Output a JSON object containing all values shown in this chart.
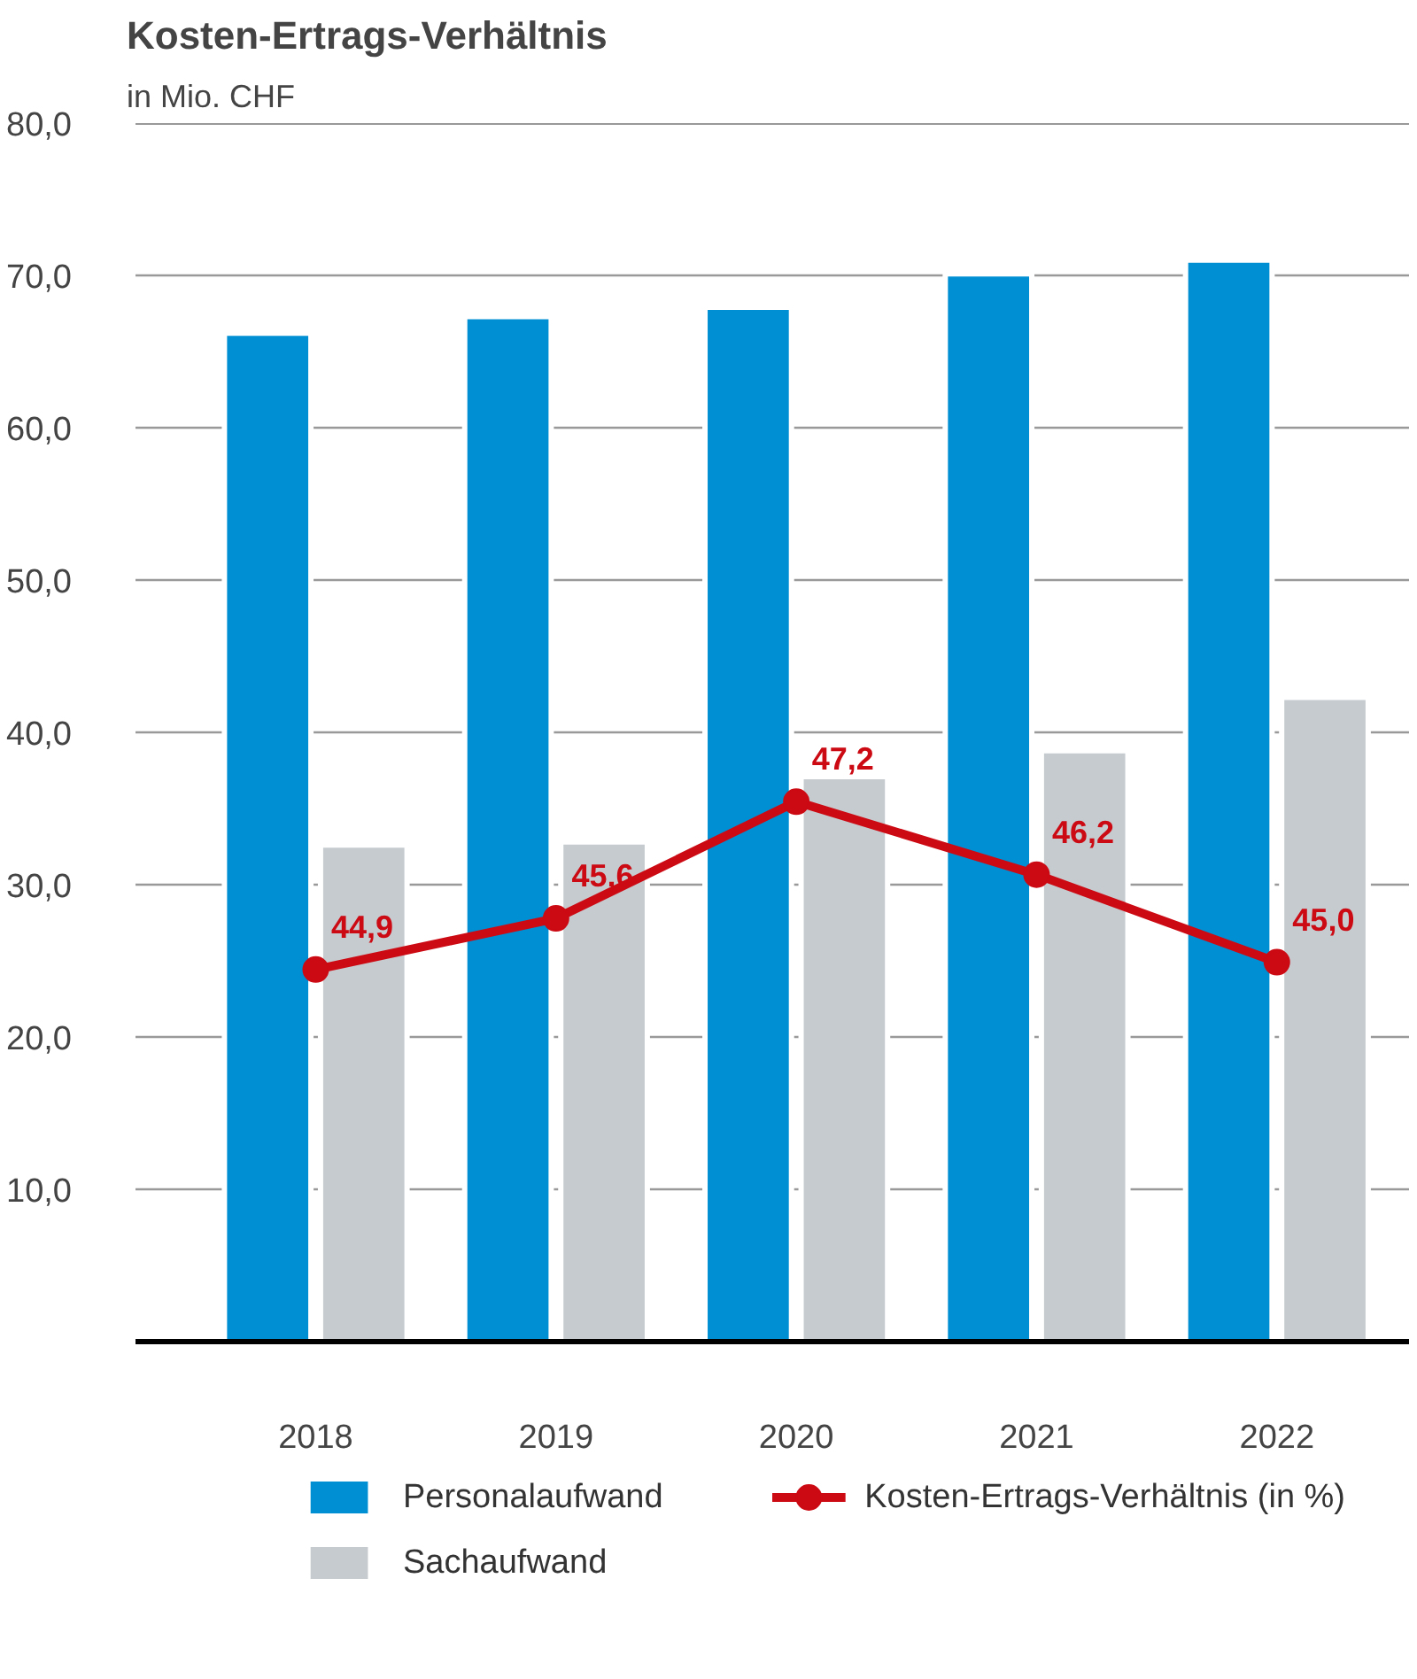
{
  "chart_data": {
    "type": "bar",
    "title": "Kosten-Ertrags-Verhältnis",
    "ylabel": "in Mio. CHF",
    "categories": [
      "2018",
      "2019",
      "2020",
      "2021",
      "2022"
    ],
    "series": [
      {
        "name": "Personalaufwand",
        "color": "#008fd3",
        "values": [
          66.2,
          67.3,
          67.9,
          70.1,
          71.0
        ]
      },
      {
        "name": "Sachaufwand",
        "color": "#c5cbce",
        "values": [
          32.6,
          32.8,
          37.1,
          38.8,
          42.3
        ]
      },
      {
        "name": "Kosten-Ertrags-Verhältnis (in %)",
        "type": "line",
        "axis": "y2",
        "color": "#cc0a14",
        "marker": "circle",
        "values": [
          44.9,
          45.6,
          47.2,
          46.2,
          45.0
        ],
        "value_labels": [
          "44,9",
          "45,6",
          "47,2",
          "46,2",
          "45,0"
        ]
      }
    ],
    "ylim": [
      0,
      80
    ],
    "yticks": [
      {
        "value": 0,
        "label": null
      },
      {
        "value": 10,
        "label": "10,0"
      },
      {
        "value": 20,
        "label": "20,0"
      },
      {
        "value": 30,
        "label": "30,0"
      },
      {
        "value": 40,
        "label": "40,0"
      },
      {
        "value": 50,
        "label": "50,0"
      },
      {
        "value": 60,
        "label": "60,0"
      },
      {
        "value": 70,
        "label": "70,0"
      },
      {
        "value": 80,
        "label": "80,0"
      }
    ],
    "y2lim": [
      39.8,
      56.5
    ],
    "grid": "y",
    "legend": "bottom"
  }
}
